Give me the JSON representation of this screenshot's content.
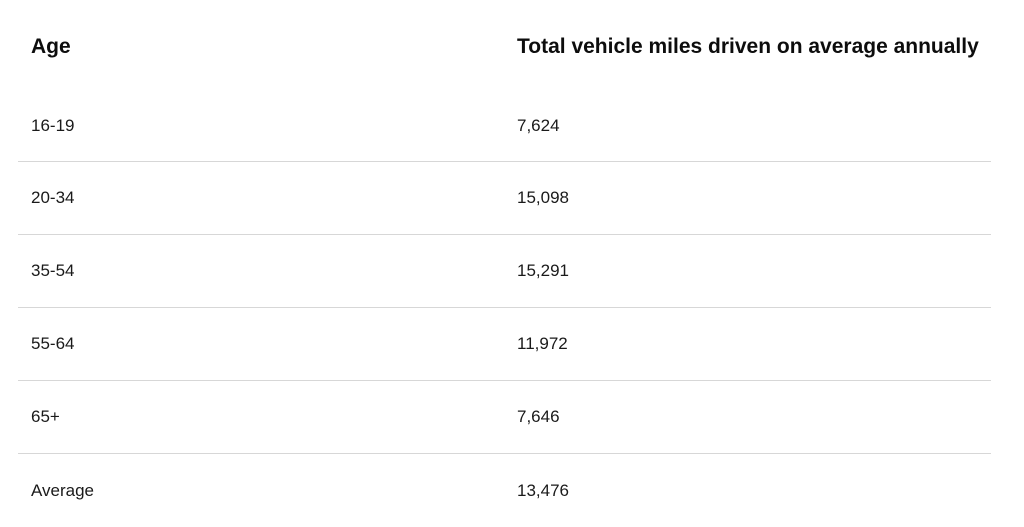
{
  "table": {
    "headers": {
      "age": "Age",
      "miles": "Total vehicle miles driven on average annually"
    },
    "rows": [
      {
        "age": "16-19",
        "miles": "7,624"
      },
      {
        "age": "20-34",
        "miles": "15,098"
      },
      {
        "age": "35-54",
        "miles": "15,291"
      },
      {
        "age": "55-64",
        "miles": "11,972"
      },
      {
        "age": "65+",
        "miles": "7,646"
      },
      {
        "age": "Average",
        "miles": "13,476"
      }
    ]
  },
  "colors": {
    "text": "#111111",
    "divider": "#d7d7d7",
    "background": "#ffffff"
  }
}
